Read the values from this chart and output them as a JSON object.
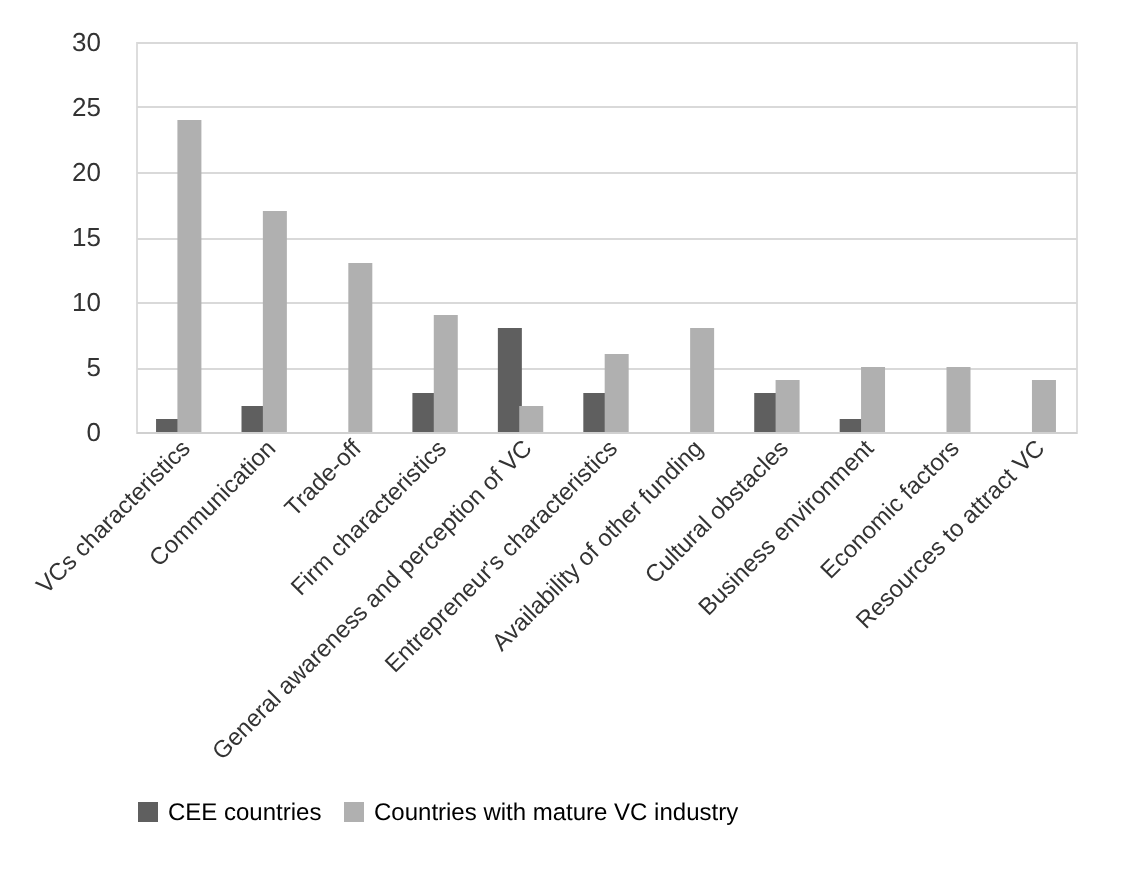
{
  "chart_data": {
    "type": "bar",
    "categories": [
      "VCs characteristics",
      "Communication",
      "Trade-off",
      "Firm characteristics",
      "General awareness and perception of VC",
      "Entrepreneur's characteristics",
      "Availability of other funding",
      "Cultural obstacles",
      "Business environment",
      "Economic factors",
      "Resources to attract VC"
    ],
    "series": [
      {
        "name": "CEE countries",
        "color": "#5f5f5f",
        "values": [
          1,
          2,
          null,
          3,
          8,
          3,
          null,
          3,
          1,
          null,
          null
        ]
      },
      {
        "name": "Countries with mature VC industry",
        "color": "#b0b0b0",
        "values": [
          24,
          17,
          13,
          9,
          2,
          6,
          8,
          4,
          5,
          5,
          4
        ]
      }
    ],
    "ylim": [
      0,
      30
    ],
    "yticks": [
      0,
      5,
      10,
      15,
      20,
      25,
      30
    ],
    "grid": "y",
    "legend": "bottom"
  }
}
